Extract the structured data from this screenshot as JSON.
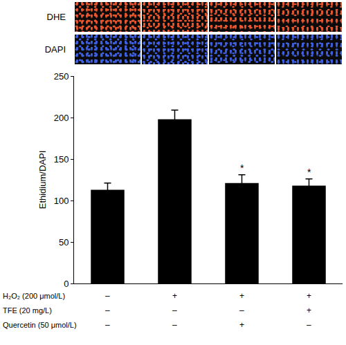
{
  "chart_data": {
    "type": "bar",
    "categories": [
      null,
      null,
      null,
      null
    ],
    "values": [
      113,
      198,
      121,
      118
    ],
    "errors": [
      8,
      11,
      10,
      8
    ],
    "color": "#000000",
    "ylim": [
      0,
      250
    ],
    "yticks": [
      0,
      50,
      100,
      150,
      200,
      250
    ],
    "y_label": "Ethidium/DAPI",
    "grid": false,
    "tick_labels": "y",
    "annotations": [
      {
        "index": 2,
        "text": "*"
      },
      {
        "index": 3,
        "text": "*"
      }
    ],
    "image_rows": [
      {
        "label": "DHE",
        "color": "#e8562e"
      },
      {
        "label": "DAPI",
        "color": "#3d5fe0"
      }
    ],
    "conditions": [
      {
        "label": "H₂O₂ (200 μmol/L)",
        "marks": [
          "–",
          "+",
          "+",
          "+"
        ]
      },
      {
        "label": "TFE (20 mg/L)",
        "marks": [
          "–",
          "–",
          "–",
          "+"
        ]
      },
      {
        "label": "Quercetin (50 μmol/L)",
        "marks": [
          "–",
          "–",
          "+",
          "–"
        ]
      }
    ]
  }
}
